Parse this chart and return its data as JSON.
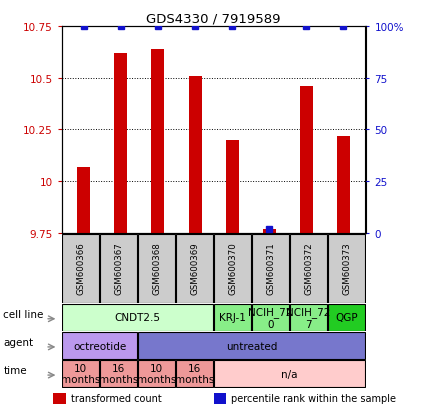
{
  "title": "GDS4330 / 7919589",
  "samples": [
    "GSM600366",
    "GSM600367",
    "GSM600368",
    "GSM600369",
    "GSM600370",
    "GSM600371",
    "GSM600372",
    "GSM600373"
  ],
  "bar_values": [
    10.07,
    10.62,
    10.64,
    10.51,
    10.2,
    9.77,
    10.46,
    10.22
  ],
  "percentile_values": [
    100,
    100,
    100,
    100,
    100,
    2,
    100,
    100
  ],
  "ylim": [
    9.75,
    10.75
  ],
  "yticks": [
    9.75,
    10.0,
    10.25,
    10.5,
    10.75
  ],
  "ytick_labels": [
    "9.75",
    "10",
    "10.25",
    "10.5",
    "10.75"
  ],
  "right_yticks": [
    0,
    25,
    50,
    75,
    100
  ],
  "right_ytick_labels": [
    "0",
    "25",
    "50",
    "75",
    "100%"
  ],
  "bar_color": "#cc0000",
  "percentile_color": "#1111cc",
  "cell_line_row": {
    "label": "cell line",
    "groups": [
      {
        "text": "CNDT2.5",
        "cols": [
          0,
          1,
          2,
          3
        ],
        "color": "#ccffcc"
      },
      {
        "text": "KRJ-1",
        "cols": [
          4
        ],
        "color": "#88ee88"
      },
      {
        "text": "NCIH_72\n0",
        "cols": [
          5
        ],
        "color": "#88ee88"
      },
      {
        "text": "NCIH_72\n7",
        "cols": [
          6
        ],
        "color": "#88ee88"
      },
      {
        "text": "QGP",
        "cols": [
          7
        ],
        "color": "#22cc22"
      }
    ]
  },
  "agent_row": {
    "label": "agent",
    "groups": [
      {
        "text": "octreotide",
        "cols": [
          0,
          1
        ],
        "color": "#bb99ee"
      },
      {
        "text": "untreated",
        "cols": [
          2,
          3,
          4,
          5,
          6,
          7
        ],
        "color": "#7777cc"
      }
    ]
  },
  "time_row": {
    "label": "time",
    "groups": [
      {
        "text": "10\nmonths",
        "cols": [
          0
        ],
        "color": "#ee9999"
      },
      {
        "text": "16\nmonths",
        "cols": [
          1
        ],
        "color": "#ee9999"
      },
      {
        "text": "10\nmonths",
        "cols": [
          2
        ],
        "color": "#ee9999"
      },
      {
        "text": "16\nmonths",
        "cols": [
          3
        ],
        "color": "#ee9999"
      },
      {
        "text": "n/a",
        "cols": [
          4,
          5,
          6,
          7
        ],
        "color": "#ffcccc"
      }
    ]
  },
  "legend_items": [
    {
      "color": "#cc0000",
      "label": "transformed count"
    },
    {
      "color": "#1111cc",
      "label": "percentile rank within the sample"
    }
  ],
  "sample_box_color": "#cccccc",
  "n_samples": 8
}
